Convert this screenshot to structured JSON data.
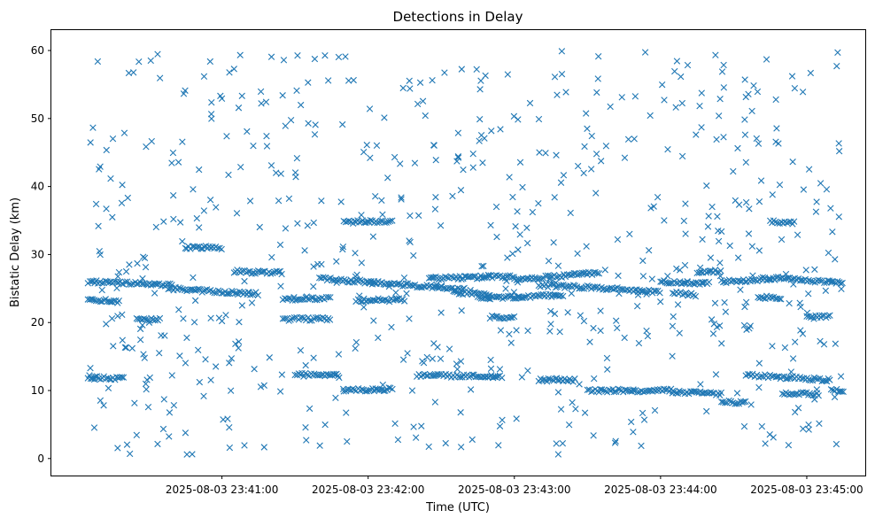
{
  "chart_data": {
    "type": "scatter",
    "title": "Detections in Delay",
    "xlabel": "Time (UTC)",
    "ylabel": "Bistatic Delay (km)",
    "marker": "x",
    "marker_color": "#1f77b4",
    "grid": false,
    "xlim": [
      "2025-08-03 23:39:50",
      "2025-08-03 23:45:24"
    ],
    "ylim": [
      -2.5,
      63.0
    ],
    "x_ticks": [
      "2025-08-03 23:41:00",
      "2025-08-03 23:42:00",
      "2025-08-03 23:43:00",
      "2025-08-03 23:44:00",
      "2025-08-03 23:45:00"
    ],
    "y_ticks": [
      "0",
      "10",
      "20",
      "30",
      "40",
      "50",
      "60"
    ],
    "series": [
      {
        "time_range": [
          "2025-08-03 23:40:05",
          "2025-08-03 23:45:15"
        ],
        "approx_point_count": 1500,
        "tracks": [
          {
            "from": [
              "2025-08-03 23:40:05",
              26.0
            ],
            "to": [
              "2025-08-03 23:40:40",
              25.5
            ]
          },
          {
            "from": [
              "2025-08-03 23:40:05",
              23.5
            ],
            "to": [
              "2025-08-03 23:40:18",
              23.0
            ]
          },
          {
            "from": [
              "2025-08-03 23:40:05",
              12.0
            ],
            "to": [
              "2025-08-03 23:40:20",
              11.7
            ]
          },
          {
            "from": [
              "2025-08-03 23:40:25",
              20.5
            ],
            "to": [
              "2025-08-03 23:40:35",
              20.4
            ]
          },
          {
            "from": [
              "2025-08-03 23:40:38",
              25.0
            ],
            "to": [
              "2025-08-03 23:41:15",
              24.2
            ]
          },
          {
            "from": [
              "2025-08-03 23:40:45",
              31.0
            ],
            "to": [
              "2025-08-03 23:41:00",
              31.0
            ]
          },
          {
            "from": [
              "2025-08-03 23:41:05",
              27.5
            ],
            "to": [
              "2025-08-03 23:41:25",
              27.3
            ]
          },
          {
            "from": [
              "2025-08-03 23:41:25",
              23.5
            ],
            "to": [
              "2025-08-03 23:41:45",
              23.5
            ]
          },
          {
            "from": [
              "2025-08-03 23:41:25",
              20.5
            ],
            "to": [
              "2025-08-03 23:41:45",
              20.5
            ]
          },
          {
            "from": [
              "2025-08-03 23:41:30",
              12.3
            ],
            "to": [
              "2025-08-03 23:41:48",
              12.3
            ]
          },
          {
            "from": [
              "2025-08-03 23:41:40",
              26.5
            ],
            "to": [
              "2025-08-03 23:42:05",
              25.8
            ]
          },
          {
            "from": [
              "2025-08-03 23:41:50",
              10.0
            ],
            "to": [
              "2025-08-03 23:42:10",
              10.2
            ]
          },
          {
            "from": [
              "2025-08-03 23:41:50",
              34.8
            ],
            "to": [
              "2025-08-03 23:42:10",
              34.8
            ]
          },
          {
            "from": [
              "2025-08-03 23:41:55",
              23.3
            ],
            "to": [
              "2025-08-03 23:42:15",
              23.3
            ]
          },
          {
            "from": [
              "2025-08-03 23:42:00",
              26.0
            ],
            "to": [
              "2025-08-03 23:42:40",
              24.8
            ]
          },
          {
            "from": [
              "2025-08-03 23:42:20",
              12.3
            ],
            "to": [
              "2025-08-03 23:42:55",
              12.0
            ]
          },
          {
            "from": [
              "2025-08-03 23:42:25",
              26.5
            ],
            "to": [
              "2025-08-03 23:43:00",
              26.8
            ]
          },
          {
            "from": [
              "2025-08-03 23:42:35",
              24.5
            ],
            "to": [
              "2025-08-03 23:42:50",
              24.0
            ]
          },
          {
            "from": [
              "2025-08-03 23:42:45",
              23.6
            ],
            "to": [
              "2025-08-03 23:43:20",
              24.0
            ]
          },
          {
            "from": [
              "2025-08-03 23:42:50",
              20.8
            ],
            "to": [
              "2025-08-03 23:43:00",
              20.8
            ]
          },
          {
            "from": [
              "2025-08-03 23:43:00",
              26.3
            ],
            "to": [
              "2025-08-03 23:43:35",
              27.3
            ]
          },
          {
            "from": [
              "2025-08-03 23:43:10",
              11.6
            ],
            "to": [
              "2025-08-03 23:43:25",
              11.5
            ]
          },
          {
            "from": [
              "2025-08-03 23:43:10",
              25.5
            ],
            "to": [
              "2025-08-03 23:43:40",
              25.0
            ]
          },
          {
            "from": [
              "2025-08-03 23:43:30",
              10.0
            ],
            "to": [
              "2025-08-03 23:44:05",
              10.0
            ]
          },
          {
            "from": [
              "2025-08-03 23:43:40",
              25.0
            ],
            "to": [
              "2025-08-03 23:44:00",
              24.5
            ]
          },
          {
            "from": [
              "2025-08-03 23:44:00",
              26.0
            ],
            "to": [
              "2025-08-03 23:44:20",
              25.8
            ]
          },
          {
            "from": [
              "2025-08-03 23:44:05",
              9.8
            ],
            "to": [
              "2025-08-03 23:44:25",
              9.5
            ]
          },
          {
            "from": [
              "2025-08-03 23:44:05",
              24.5
            ],
            "to": [
              "2025-08-03 23:44:15",
              24.0
            ]
          },
          {
            "from": [
              "2025-08-03 23:44:15",
              27.5
            ],
            "to": [
              "2025-08-03 23:44:25",
              27.5
            ]
          },
          {
            "from": [
              "2025-08-03 23:44:25",
              8.3
            ],
            "to": [
              "2025-08-03 23:44:35",
              8.3
            ]
          },
          {
            "from": [
              "2025-08-03 23:44:25",
              26.0
            ],
            "to": [
              "2025-08-03 23:44:50",
              26.5
            ]
          },
          {
            "from": [
              "2025-08-03 23:44:35",
              12.3
            ],
            "to": [
              "2025-08-03 23:45:10",
              11.5
            ]
          },
          {
            "from": [
              "2025-08-03 23:44:40",
              23.8
            ],
            "to": [
              "2025-08-03 23:44:50",
              23.5
            ]
          },
          {
            "from": [
              "2025-08-03 23:44:45",
              34.8
            ],
            "to": [
              "2025-08-03 23:44:55",
              34.7
            ]
          },
          {
            "from": [
              "2025-08-03 23:44:50",
              9.5
            ],
            "to": [
              "2025-08-03 23:45:05",
              9.5
            ]
          },
          {
            "from": [
              "2025-08-03 23:44:50",
              26.5
            ],
            "to": [
              "2025-08-03 23:45:15",
              25.8
            ]
          },
          {
            "from": [
              "2025-08-03 23:45:00",
              20.8
            ],
            "to": [
              "2025-08-03 23:45:10",
              20.8
            ]
          },
          {
            "from": [
              "2025-08-03 23:45:10",
              10.0
            ],
            "to": [
              "2025-08-03 23:45:15",
              10.0
            ]
          }
        ],
        "clutter": {
          "approx_point_count": 650,
          "y_range": [
            0.5,
            60.0
          ]
        }
      }
    ]
  }
}
